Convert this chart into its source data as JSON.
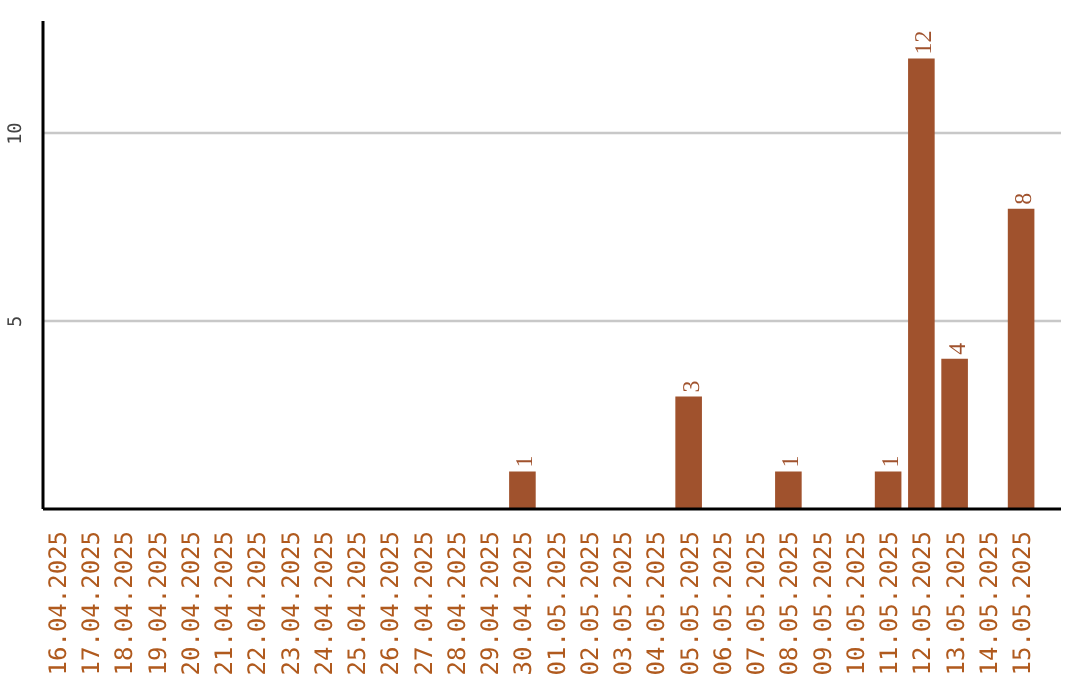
{
  "chart_data": {
    "type": "bar",
    "categories": [
      "16.04.2025",
      "17.04.2025",
      "18.04.2025",
      "19.04.2025",
      "20.04.2025",
      "21.04.2025",
      "22.04.2025",
      "23.04.2025",
      "24.04.2025",
      "25.04.2025",
      "26.04.2025",
      "27.04.2025",
      "28.04.2025",
      "29.04.2025",
      "30.04.2025",
      "01.05.2025",
      "02.05.2025",
      "03.05.2025",
      "04.05.2025",
      "05.05.2025",
      "06.05.2025",
      "07.05.2025",
      "08.05.2025",
      "09.05.2025",
      "10.05.2025",
      "11.05.2025",
      "12.05.2025",
      "13.05.2025",
      "14.05.2025",
      "15.05.2025"
    ],
    "values": [
      0,
      0,
      0,
      0,
      0,
      0,
      0,
      0,
      0,
      0,
      0,
      0,
      0,
      0,
      1,
      0,
      0,
      0,
      0,
      3,
      0,
      0,
      1,
      0,
      0,
      1,
      12,
      4,
      0,
      8
    ],
    "value_labels": [
      null,
      null,
      null,
      null,
      null,
      null,
      null,
      null,
      null,
      null,
      null,
      null,
      null,
      null,
      "1",
      null,
      null,
      null,
      null,
      "3",
      null,
      null,
      "1",
      null,
      null,
      "1",
      "12",
      "4",
      null,
      "8"
    ],
    "color": "#a0522d",
    "ylim": [
      0,
      13
    ],
    "yticks": [
      5,
      10
    ],
    "grid": "y"
  }
}
